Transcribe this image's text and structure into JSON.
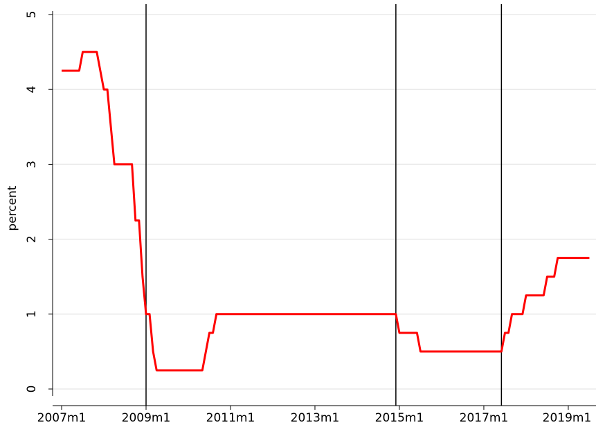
{
  "chart_data": {
    "type": "line",
    "y_label": "percent",
    "color": "#ff0000",
    "grid": true,
    "ylim": [
      0,
      5
    ],
    "yticks": [
      0,
      1,
      2,
      3,
      4,
      5
    ],
    "xticks": [
      "2007m1",
      "2009m1",
      "2011m1",
      "2013m1",
      "2015m1",
      "2017m1",
      "2019m1"
    ],
    "vlines": [
      "2009m1",
      "2014m12",
      "2017m6"
    ],
    "x": [
      "2007m1",
      "2007m2",
      "2007m3",
      "2007m4",
      "2007m5",
      "2007m6",
      "2007m7",
      "2007m8",
      "2007m9",
      "2007m10",
      "2007m11",
      "2007m12",
      "2008m1",
      "2008m2",
      "2008m3",
      "2008m4",
      "2008m5",
      "2008m6",
      "2008m7",
      "2008m8",
      "2008m9",
      "2008m10",
      "2008m11",
      "2008m12",
      "2009m1",
      "2009m2",
      "2009m3",
      "2009m4",
      "2009m5",
      "2009m6",
      "2009m7",
      "2009m8",
      "2009m9",
      "2009m10",
      "2009m11",
      "2009m12",
      "2010m1",
      "2010m2",
      "2010m3",
      "2010m4",
      "2010m5",
      "2010m6",
      "2010m7",
      "2010m8",
      "2010m9",
      "2010m10",
      "2010m11",
      "2010m12",
      "2011m1",
      "2011m2",
      "2011m3",
      "2011m4",
      "2011m5",
      "2011m6",
      "2011m7",
      "2011m8",
      "2011m9",
      "2011m10",
      "2011m11",
      "2011m12",
      "2012m1",
      "2012m2",
      "2012m3",
      "2012m4",
      "2012m5",
      "2012m6",
      "2012m7",
      "2012m8",
      "2012m9",
      "2012m10",
      "2012m11",
      "2012m12",
      "2013m1",
      "2013m2",
      "2013m3",
      "2013m4",
      "2013m5",
      "2013m6",
      "2013m7",
      "2013m8",
      "2013m9",
      "2013m10",
      "2013m11",
      "2013m12",
      "2014m1",
      "2014m2",
      "2014m3",
      "2014m4",
      "2014m5",
      "2014m6",
      "2014m7",
      "2014m8",
      "2014m9",
      "2014m10",
      "2014m11",
      "2014m12",
      "2015m1",
      "2015m2",
      "2015m3",
      "2015m4",
      "2015m5",
      "2015m6",
      "2015m7",
      "2015m8",
      "2015m9",
      "2015m10",
      "2015m11",
      "2015m12",
      "2016m1",
      "2016m2",
      "2016m3",
      "2016m4",
      "2016m5",
      "2016m6",
      "2016m7",
      "2016m8",
      "2016m9",
      "2016m10",
      "2016m11",
      "2016m12",
      "2017m1",
      "2017m2",
      "2017m3",
      "2017m4",
      "2017m5",
      "2017m6",
      "2017m7",
      "2017m8",
      "2017m9",
      "2017m10",
      "2017m11",
      "2017m12",
      "2018m1",
      "2018m2",
      "2018m3",
      "2018m4",
      "2018m5",
      "2018m6",
      "2018m7",
      "2018m8",
      "2018m9",
      "2018m10",
      "2018m11",
      "2018m12",
      "2019m1",
      "2019m2",
      "2019m3",
      "2019m4",
      "2019m5",
      "2019m6",
      "2019m7"
    ],
    "values": [
      4.25,
      4.25,
      4.25,
      4.25,
      4.25,
      4.25,
      4.5,
      4.5,
      4.5,
      4.5,
      4.5,
      4.25,
      4.0,
      4.0,
      3.5,
      3.0,
      3.0,
      3.0,
      3.0,
      3.0,
      3.0,
      2.25,
      2.25,
      1.5,
      1.0,
      1.0,
      0.5,
      0.25,
      0.25,
      0.25,
      0.25,
      0.25,
      0.25,
      0.25,
      0.25,
      0.25,
      0.25,
      0.25,
      0.25,
      0.25,
      0.25,
      0.5,
      0.75,
      0.75,
      1.0,
      1.0,
      1.0,
      1.0,
      1.0,
      1.0,
      1.0,
      1.0,
      1.0,
      1.0,
      1.0,
      1.0,
      1.0,
      1.0,
      1.0,
      1.0,
      1.0,
      1.0,
      1.0,
      1.0,
      1.0,
      1.0,
      1.0,
      1.0,
      1.0,
      1.0,
      1.0,
      1.0,
      1.0,
      1.0,
      1.0,
      1.0,
      1.0,
      1.0,
      1.0,
      1.0,
      1.0,
      1.0,
      1.0,
      1.0,
      1.0,
      1.0,
      1.0,
      1.0,
      1.0,
      1.0,
      1.0,
      1.0,
      1.0,
      1.0,
      1.0,
      1.0,
      0.75,
      0.75,
      0.75,
      0.75,
      0.75,
      0.75,
      0.5,
      0.5,
      0.5,
      0.5,
      0.5,
      0.5,
      0.5,
      0.5,
      0.5,
      0.5,
      0.5,
      0.5,
      0.5,
      0.5,
      0.5,
      0.5,
      0.5,
      0.5,
      0.5,
      0.5,
      0.5,
      0.5,
      0.5,
      0.5,
      0.75,
      0.75,
      1.0,
      1.0,
      1.0,
      1.0,
      1.25,
      1.25,
      1.25,
      1.25,
      1.25,
      1.25,
      1.5,
      1.5,
      1.5,
      1.75,
      1.75,
      1.75,
      1.75,
      1.75,
      1.75,
      1.75,
      1.75,
      1.75,
      1.75
    ]
  }
}
